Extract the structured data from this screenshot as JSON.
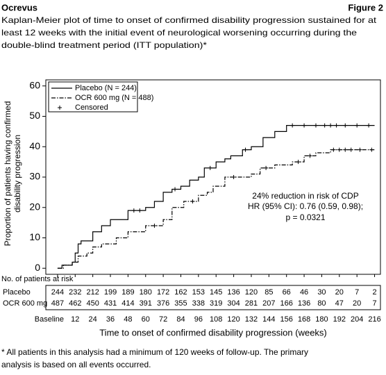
{
  "header": {
    "left": "Ocrevus",
    "right": "Figure 2"
  },
  "chart_data": {
    "type": "step",
    "title": [
      "Kaplan-Meier plot of time to onset of confirmed disability progression sustained for at",
      "least 12 weeks with the initial event of neurological worsening occurring during the",
      "double-blind treatment period (ITT population)*"
    ],
    "y_label": [
      "Proportion of patients having confirmed",
      "disability progression"
    ],
    "x_label": "Time to onset of confirmed disability progression (weeks)",
    "xlim": [
      -8,
      220
    ],
    "ylim": [
      -2,
      62
    ],
    "xticks": [
      {
        "value": 0,
        "label": "Baseline"
      },
      12,
      24,
      36,
      48,
      60,
      72,
      84,
      96,
      108,
      120,
      132,
      144,
      156,
      168,
      180,
      192,
      204,
      216
    ],
    "yticks": [
      0,
      10,
      20,
      30,
      40,
      50,
      60
    ],
    "legend": "top-left",
    "censored_label": "Censored",
    "series": [
      {
        "name": "Placebo (N = 244)",
        "color": "#000000",
        "line_style": "solid",
        "x": [
          0,
          3,
          10,
          12,
          14,
          16,
          24,
          30,
          36,
          48,
          60,
          66,
          72,
          78,
          84,
          90,
          96,
          100,
          108,
          114,
          118,
          126,
          132,
          140,
          148,
          156,
          216
        ],
        "values": [
          0,
          1,
          2,
          5,
          8,
          9,
          12,
          14,
          16,
          19,
          20,
          22,
          25,
          26,
          27,
          29,
          30,
          33,
          35,
          36,
          37,
          39,
          40,
          43,
          45,
          47,
          47
        ],
        "censored_x": [
          52,
          56,
          80,
          104,
          128,
          160,
          168,
          176,
          182,
          186,
          190,
          196,
          204,
          212
        ],
        "censored_y": [
          19,
          19,
          26,
          33,
          39,
          47,
          47,
          47,
          47,
          47,
          47,
          47,
          47,
          47
        ]
      },
      {
        "name": "OCR 600 mg (N = 488)",
        "color": "#000000",
        "line_style": "dashdot",
        "x": [
          0,
          4,
          10,
          14,
          20,
          24,
          30,
          40,
          48,
          60,
          72,
          78,
          86,
          96,
          102,
          106,
          114,
          132,
          138,
          148,
          160,
          168,
          176,
          186,
          216
        ],
        "values": [
          0,
          1,
          2,
          4,
          5,
          7,
          8,
          10,
          12,
          14,
          16,
          20,
          22,
          24,
          25,
          27,
          30,
          31,
          33,
          34,
          35,
          37,
          38,
          39,
          39
        ],
        "censored_x": [
          66,
          92,
          120,
          142,
          164,
          172,
          188,
          192,
          196,
          200,
          206,
          214
        ],
        "censored_y": [
          14,
          22,
          30,
          33,
          35,
          37,
          39,
          39,
          39,
          39,
          39,
          39
        ]
      }
    ],
    "annotation": [
      "24% reduction in risk of CDP",
      "HR (95% CI): 0.76 (0.59, 0.98);",
      "p = 0.0321"
    ],
    "risk_table": {
      "title": "No. of patients at risk",
      "rows": [
        {
          "name": "Placebo",
          "values": [
            244,
            232,
            212,
            199,
            189,
            180,
            172,
            162,
            153,
            145,
            136,
            120,
            85,
            66,
            46,
            30,
            20,
            7,
            2
          ]
        },
        {
          "name": "OCR 600 mg",
          "values": [
            487,
            462,
            450,
            431,
            414,
            391,
            376,
            355,
            338,
            319,
            304,
            281,
            207,
            166,
            136,
            80,
            47,
            20,
            7
          ]
        }
      ]
    }
  },
  "footnote": [
    "* All patients in this analysis had a minimum of 120 weeks of follow-up. The primary",
    "analysis is based on all events occurred."
  ]
}
